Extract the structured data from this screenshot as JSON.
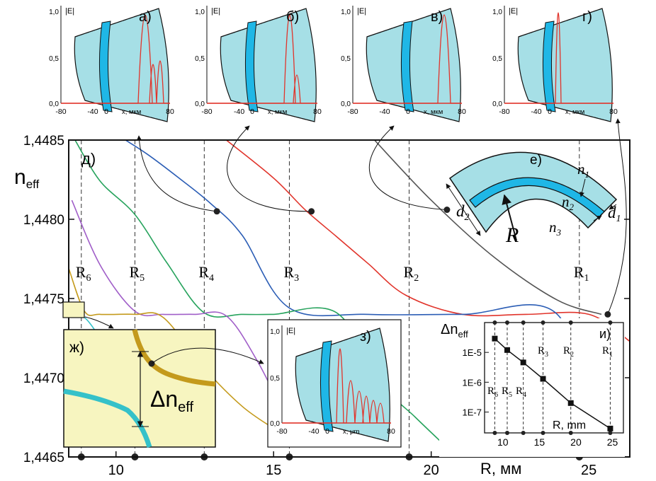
{
  "main": {
    "y_axis_title": "n",
    "y_axis_title_sub": "eff",
    "x_axis_title": "R, мм",
    "panel_label": "д)",
    "radius_labels": [
      "R",
      "R",
      "R",
      "R",
      "R",
      "R"
    ],
    "radius_subs": [
      "6",
      "5",
      "4",
      "3",
      "2",
      "1"
    ]
  },
  "insets": {
    "field_panels": [
      {
        "label": "а)",
        "yaxis": "|E|",
        "yticks": [
          "1,0",
          "0,5",
          "0,0"
        ],
        "xticks": [
          "-80",
          "-40",
          "0",
          "x, мкм",
          "80"
        ]
      },
      {
        "label": "б)",
        "yaxis": "|E|",
        "yticks": [
          "1,0",
          "0,5",
          "0,0"
        ],
        "xticks": [
          "-80",
          "-40",
          "0",
          "x, мкм",
          "80"
        ]
      },
      {
        "label": "в)",
        "yaxis": "|E|",
        "yticks": [
          "1,0",
          "0,5",
          "0,0"
        ],
        "xticks": [
          "-80",
          "-40",
          "0",
          "x, мкм",
          "80"
        ]
      },
      {
        "label": "г)",
        "yaxis": "|E|",
        "yticks": [
          "1,0",
          "0,5",
          "0,0"
        ],
        "xticks": [
          "-80",
          "-40",
          "0",
          "x, мкм",
          "80"
        ]
      }
    ],
    "z_panel": {
      "label": "з)",
      "yaxis": "|E|",
      "yticks": [
        "1,0",
        "0,5",
        "0,0"
      ],
      "xticks": [
        "-80",
        "-40",
        "0",
        "x, μm",
        "80"
      ]
    },
    "geometry": {
      "label": "е)",
      "n1": "n",
      "n1_sub": "1",
      "n2": "n",
      "n2_sub": "2",
      "n3": "n",
      "n3_sub": "3",
      "d1": "d",
      "d1_sub": "1",
      "d2": "d",
      "d2_sub": "2",
      "R": "R"
    },
    "zoom": {
      "label": "ж)",
      "delta": "Δn",
      "delta_sub": "eff"
    },
    "delta_panel": {
      "label": "и)",
      "title": "Δn",
      "title_sub": "eff",
      "xlabel": "R, mm",
      "yticks": [
        "1E-5",
        "1E-6",
        "1E-7"
      ],
      "xticks": [
        "10",
        "15",
        "20",
        "25"
      ],
      "radius_subs": [
        "6",
        "5",
        "4",
        "3",
        "2",
        "1"
      ]
    }
  },
  "colors": {
    "gray": "#555555",
    "red": "#e1342b",
    "blue": "#2b5db5",
    "green": "#27a35d",
    "purple": "#a05ec8",
    "gold": "#c49a1c",
    "cyan": "#35c1c9",
    "fiber": "#a6dfe6",
    "core": "#1fb7e6",
    "zoom_bg": "#f7f5c0"
  },
  "chart_data": [
    {
      "type": "line",
      "title": "",
      "xlabel": "R, мм",
      "ylabel": "n_eff",
      "xlim": [
        8.5,
        26.3
      ],
      "ylim": [
        1.4465,
        1.4485
      ],
      "xticks": [
        10,
        15,
        20,
        25
      ],
      "yticks": [
        1.4465,
        1.447,
        1.4475,
        1.448,
        1.4485
      ],
      "ytick_labels": [
        "1,4465",
        "1,4470",
        "1,4475",
        "1,4480",
        "1,4485"
      ],
      "fundamental_level": 1.4474,
      "series": [
        {
          "color": "gray",
          "x": [
            18.2,
            20,
            22,
            24,
            25.4
          ],
          "y": [
            1.4485,
            1.44812,
            1.44776,
            1.44749,
            1.4474
          ]
        },
        {
          "color": "red",
          "x": [
            13.5,
            15,
            16,
            17,
            18,
            19.2,
            21,
            23,
            25,
            26.3
          ],
          "y": [
            1.4485,
            1.44826,
            1.44806,
            1.44789,
            1.44772,
            1.44752,
            1.4474,
            1.4474,
            1.4474,
            1.44723
          ]
        },
        {
          "color": "blue",
          "x": [
            10.3,
            11,
            12,
            13,
            14,
            15.5,
            18,
            21,
            24,
            25.3,
            26.3
          ],
          "y": [
            1.4485,
            1.44841,
            1.44826,
            1.4481,
            1.4479,
            1.44744,
            1.4474,
            1.4474,
            1.4474,
            1.44658,
            1.4465
          ]
        },
        {
          "color": "green",
          "x": [
            8.7,
            9.5,
            10.6,
            11.6,
            12.8,
            14,
            15,
            17,
            18.5,
            19.5,
            20.5
          ],
          "y": [
            1.4485,
            1.44824,
            1.44803,
            1.44773,
            1.44741,
            1.4474,
            1.4474,
            1.44741,
            1.44695,
            1.44675,
            1.44656
          ]
        },
        {
          "color": "purple",
          "x": [
            8.6,
            9.5,
            10.6,
            11.5,
            12.5,
            13.5,
            14.5,
            15.5,
            16
          ],
          "y": [
            1.44812,
            1.44771,
            1.44742,
            1.4474,
            1.4474,
            1.44739,
            1.4471,
            1.44671,
            1.44659
          ]
        },
        {
          "color": "gold",
          "x": [
            8.5,
            9,
            9.5,
            10.6,
            11.5,
            12.8,
            14,
            15
          ],
          "y": [
            1.44769,
            1.44742,
            1.4474,
            1.4474,
            1.44738,
            1.44706,
            1.44682,
            1.44668
          ]
        },
        {
          "color": "cyan",
          "x": [
            8.5,
            9.0,
            9.4
          ],
          "y": [
            1.44741,
            1.44738,
            1.44728
          ]
        }
      ],
      "radius_markers": [
        {
          "label": "R6",
          "x": 8.9
        },
        {
          "label": "R5",
          "x": 10.6
        },
        {
          "label": "R4",
          "x": 12.8
        },
        {
          "label": "R3",
          "x": 15.5
        },
        {
          "label": "R2",
          "x": 19.3
        },
        {
          "label": "R1",
          "x": 24.7
        }
      ],
      "highlight_points": [
        {
          "x": 13.2,
          "y": 1.44805,
          "panel": "а)"
        },
        {
          "x": 16.2,
          "y": 1.44805,
          "panel": "б)"
        },
        {
          "x": 20.5,
          "y": 1.44806,
          "panel": "в)"
        },
        {
          "x": 25.6,
          "y": 1.4474,
          "panel": "г)"
        }
      ]
    },
    {
      "type": "scatter",
      "title": "и)",
      "xlabel": "R, mm",
      "ylabel": "Δn_eff",
      "yscale": "log",
      "xlim": [
        7.5,
        26.5
      ],
      "ylim": [
        2e-08,
        0.0001
      ],
      "x": [
        8.9,
        10.6,
        12.8,
        15.5,
        19.3,
        24.7
      ],
      "y": [
        2.9e-05,
        1.2e-05,
        4.6e-06,
        1.3e-06,
        2e-07,
        2.8e-08
      ]
    }
  ]
}
